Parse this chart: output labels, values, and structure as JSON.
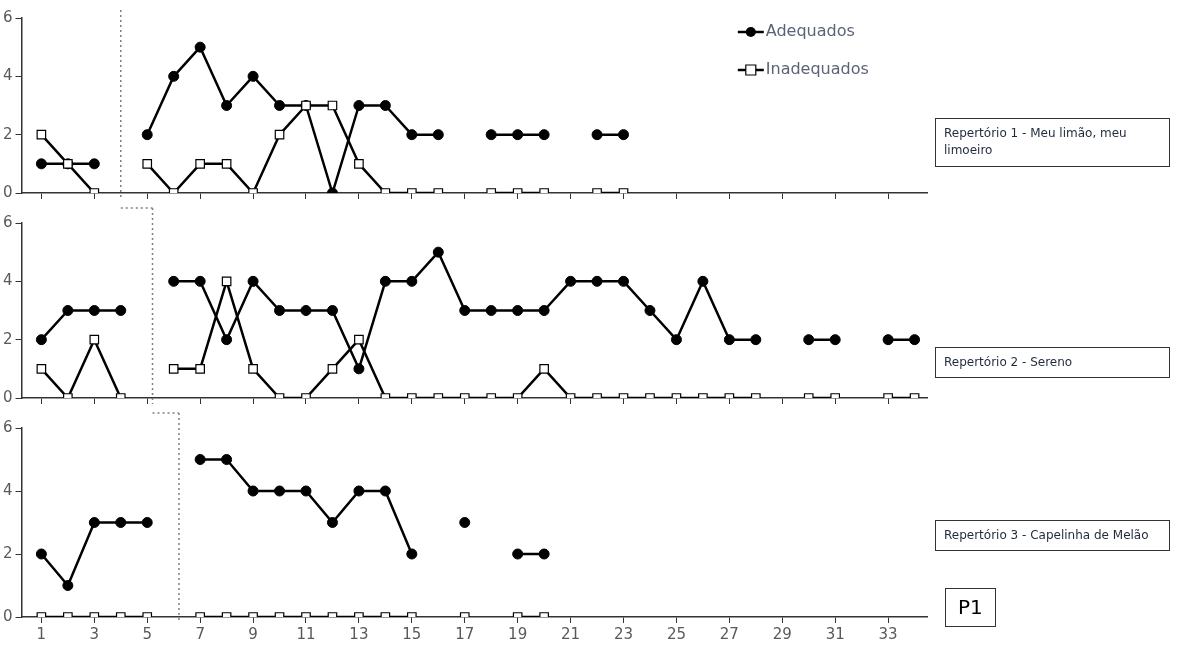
{
  "chart_data": [
    {
      "type": "line",
      "x": [
        1,
        2,
        3,
        4,
        5,
        6,
        7,
        8,
        9,
        10,
        11,
        12,
        13,
        14,
        15,
        16,
        17,
        18,
        19,
        20,
        21,
        22,
        23
      ],
      "xlim": [
        0.25,
        34.5
      ],
      "xticks": [
        1,
        3,
        5,
        7,
        9,
        11,
        13,
        15,
        17,
        19,
        21,
        23,
        25,
        27,
        29,
        31,
        33
      ],
      "ylim": [
        0,
        6
      ],
      "yticks": [
        0,
        2,
        4,
        6
      ],
      "tick_labels": "y",
      "grid": false,
      "legend": "top right",
      "line_style": "solid",
      "series": [
        {
          "name": "Adequados",
          "color": "#000000",
          "marker": "circle",
          "values": [
            1,
            1,
            1,
            null,
            2,
            4,
            5,
            3,
            4,
            3,
            3,
            0,
            3,
            3,
            2,
            2,
            null,
            2,
            2,
            2,
            null,
            2,
            2
          ]
        },
        {
          "name": "Inadequados",
          "color": "#000000",
          "marker": "square",
          "values": [
            2,
            1,
            0,
            null,
            1,
            0,
            1,
            1,
            0,
            2,
            3,
            3,
            1,
            0,
            0,
            0,
            null,
            0,
            0,
            0,
            null,
            0,
            0
          ]
        }
      ],
      "ref_lines": [
        {
          "axis": "x",
          "value": 4,
          "line_style": "dotted",
          "color": "#7f7f7f"
        }
      ],
      "annotations": [
        "Repertório 1 - Meu limão, meu limoeiro"
      ]
    },
    {
      "type": "line",
      "x": [
        1,
        2,
        3,
        4,
        5,
        6,
        7,
        8,
        9,
        10,
        11,
        12,
        13,
        14,
        15,
        16,
        17,
        18,
        19,
        20,
        21,
        22,
        23,
        24,
        25,
        26,
        27,
        28,
        29,
        30,
        31,
        32,
        33,
        34
      ],
      "xlim": [
        0.25,
        34.5
      ],
      "xticks": [
        1,
        3,
        5,
        7,
        9,
        11,
        13,
        15,
        17,
        19,
        21,
        23,
        25,
        27,
        29,
        31,
        33
      ],
      "ylim": [
        0,
        6
      ],
      "yticks": [
        0,
        2,
        4,
        6
      ],
      "tick_labels": "y",
      "grid": false,
      "line_style": "solid",
      "series": [
        {
          "color": "#000000",
          "marker": "circle",
          "values": [
            2,
            3,
            3,
            3,
            null,
            4,
            4,
            2,
            4,
            3,
            3,
            3,
            1,
            4,
            4,
            5,
            3,
            3,
            3,
            3,
            4,
            4,
            4,
            3,
            2,
            4,
            2,
            2,
            null,
            2,
            2,
            null,
            2,
            2
          ]
        },
        {
          "color": "#000000",
          "marker": "square",
          "values": [
            1,
            0,
            2,
            0,
            null,
            1,
            1,
            4,
            1,
            0,
            0,
            1,
            2,
            0,
            0,
            0,
            0,
            0,
            0,
            1,
            0,
            0,
            0,
            0,
            0,
            0,
            0,
            0,
            null,
            0,
            0,
            null,
            0,
            0
          ]
        }
      ],
      "ref_lines": [
        {
          "axis": "x",
          "value": 5.2,
          "line_style": "dotted",
          "color": "#7f7f7f"
        }
      ],
      "annotations": [
        "Repertório 2 - Sereno"
      ]
    },
    {
      "type": "line",
      "x": [
        1,
        2,
        3,
        4,
        5,
        6,
        7,
        8,
        9,
        10,
        11,
        12,
        13,
        14,
        15,
        16,
        17,
        18,
        19,
        20
      ],
      "xlim": [
        0.25,
        34.5
      ],
      "xticks": [
        1,
        3,
        5,
        7,
        9,
        11,
        13,
        15,
        17,
        19,
        21,
        23,
        25,
        27,
        29,
        31,
        33
      ],
      "ylim": [
        0,
        6
      ],
      "yticks": [
        0,
        2,
        4,
        6
      ],
      "grid": false,
      "line_style": "solid",
      "series": [
        {
          "color": "#000000",
          "marker": "circle",
          "values": [
            2,
            1,
            3,
            3,
            3,
            null,
            5,
            5,
            4,
            4,
            4,
            3,
            4,
            4,
            2,
            null,
            3,
            null,
            2,
            2
          ]
        },
        {
          "color": "#000000",
          "marker": "square",
          "values": [
            0,
            0,
            0,
            0,
            0,
            null,
            0,
            0,
            0,
            0,
            0,
            0,
            0,
            0,
            0,
            null,
            0,
            null,
            0,
            0
          ]
        }
      ],
      "ref_lines": [
        {
          "axis": "x",
          "value": 6.2,
          "line_style": "dotted",
          "color": "#7f7f7f"
        }
      ],
      "annotations": [
        "Repertório 3 - Capelinha de Melão",
        "P1"
      ]
    }
  ]
}
